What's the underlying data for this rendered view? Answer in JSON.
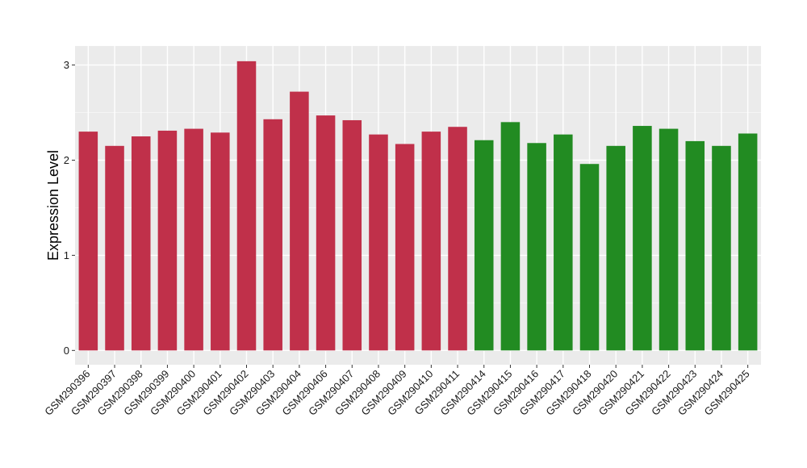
{
  "chart_data": {
    "type": "bar",
    "ylabel": "Expression Level",
    "xlabel": "",
    "ylim": [
      -0.15,
      3.2
    ],
    "yticks": [
      0,
      1,
      2,
      3
    ],
    "grid": true,
    "panel_background": "#ebebeb",
    "categories": [
      "GSM290396",
      "GSM290397",
      "GSM290398",
      "GSM290399",
      "GSM290400",
      "GSM290401",
      "GSM290402",
      "GSM290403",
      "GSM290404",
      "GSM290406",
      "GSM290407",
      "GSM290408",
      "GSM290409",
      "GSM290410",
      "GSM290411",
      "GSM290414",
      "GSM290415",
      "GSM290416",
      "GSM290417",
      "GSM290418",
      "GSM290420",
      "GSM290421",
      "GSM290422",
      "GSM290423",
      "GSM290424",
      "GSM290425"
    ],
    "values": [
      2.3,
      2.15,
      2.25,
      2.31,
      2.33,
      2.29,
      3.04,
      2.43,
      2.72,
      2.47,
      2.42,
      2.27,
      2.17,
      2.3,
      2.35,
      2.21,
      2.4,
      2.18,
      2.27,
      1.96,
      2.15,
      2.36,
      2.33,
      2.2,
      2.15,
      2.28
    ],
    "colors": [
      "#c0304a",
      "#c0304a",
      "#c0304a",
      "#c0304a",
      "#c0304a",
      "#c0304a",
      "#c0304a",
      "#c0304a",
      "#c0304a",
      "#c0304a",
      "#c0304a",
      "#c0304a",
      "#c0304a",
      "#c0304a",
      "#c0304a",
      "#228b22",
      "#228b22",
      "#228b22",
      "#228b22",
      "#228b22",
      "#228b22",
      "#228b22",
      "#228b22",
      "#228b22",
      "#228b22",
      "#228b22"
    ]
  }
}
